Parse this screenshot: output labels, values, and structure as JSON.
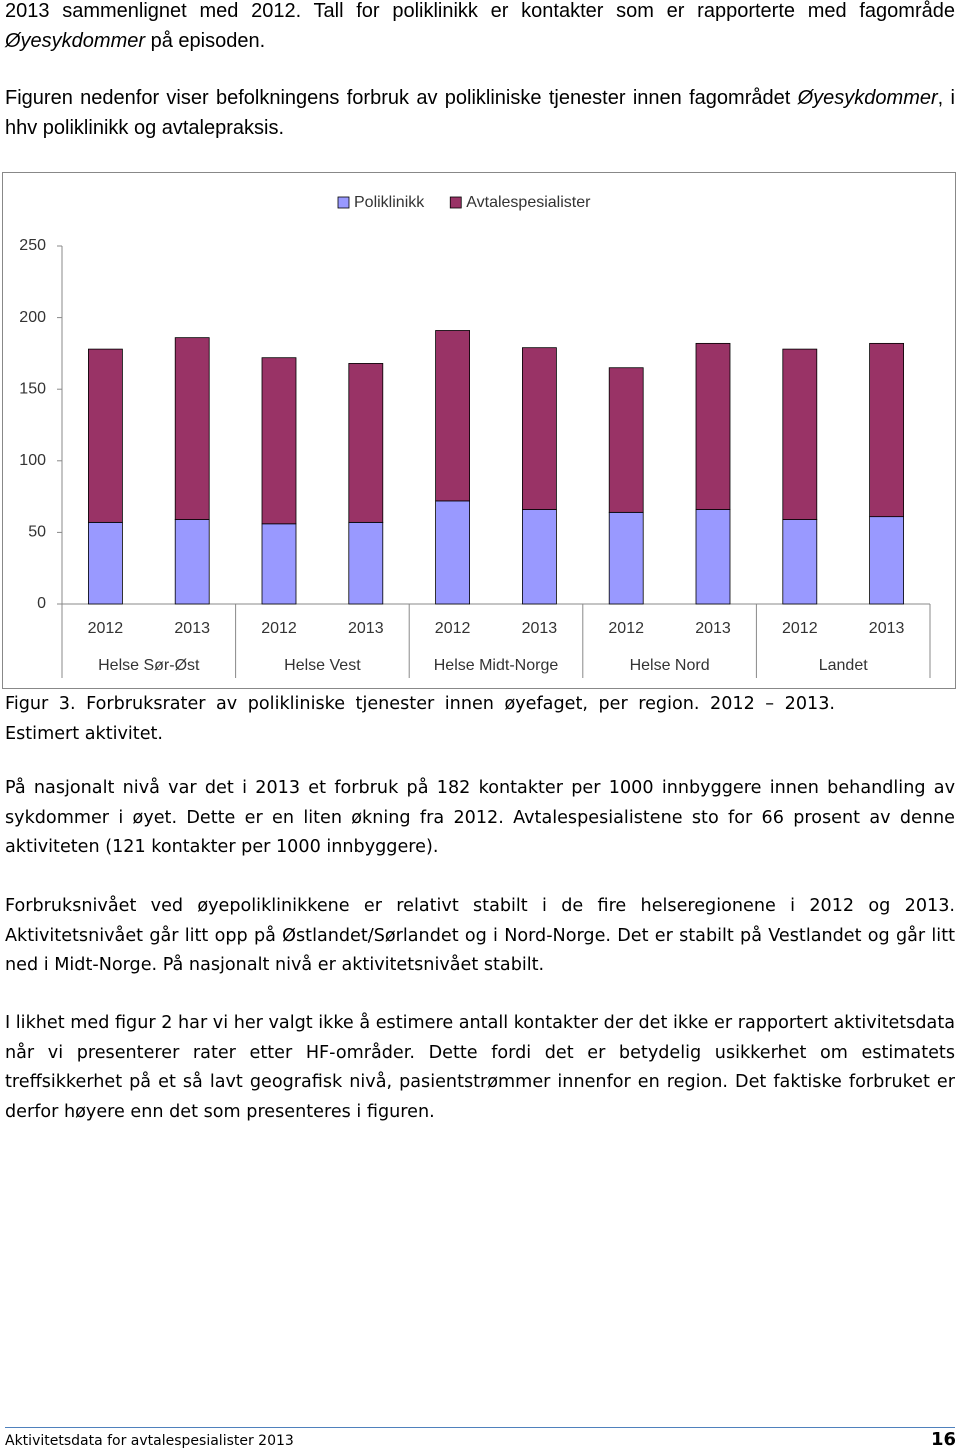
{
  "intro_paragraphs": [
    {
      "parts": [
        {
          "text": "2013 sammenlignet med 2012. Tall for poliklinikk er kontakter som er rapporterte med fagområde "
        },
        {
          "text": "Øyesykdommer",
          "italic": true
        },
        {
          "text": " på episoden."
        }
      ]
    },
    {
      "parts": [
        {
          "text": "Figuren nedenfor viser befolkningens forbruk av polikliniske tjenester innen fagområdet "
        },
        {
          "text": "Øyesykdommer",
          "italic": true
        },
        {
          "text": ", i hhv poliklinikk og avtalepraksis."
        }
      ]
    }
  ],
  "chart_data": {
    "type": "stacked_bar",
    "categories": [
      "2012",
      "2013",
      "2012",
      "2013",
      "2012",
      "2013",
      "2012",
      "2013",
      "2012",
      "2013"
    ],
    "groups": [
      "Helse Sør-Øst",
      "Helse Vest",
      "Helse Midt-Norge",
      "Helse Nord",
      "Landet"
    ],
    "series": [
      {
        "name": "Poliklinikk",
        "color": "#9999ff",
        "values": [
          57,
          59,
          56,
          57,
          72,
          66,
          64,
          66,
          59,
          61
        ]
      },
      {
        "name": "Avtalespesialister",
        "color": "#993366",
        "values": [
          121,
          127,
          116,
          111,
          119,
          113,
          101,
          116,
          119,
          121
        ]
      }
    ],
    "ylim": [
      0,
      250
    ],
    "yticks": [
      0,
      50,
      100,
      150,
      200,
      250
    ],
    "grid": false,
    "legend": "top"
  },
  "caption": "Figur 3. Forbruksrater av polikliniske tjenester innen øyefaget, per region. 2012 – 2013. Estimert aktivitet.",
  "paragraphs": [
    "På nasjonalt nivå var det i 2013 et forbruk på 182 kontakter per 1000 innbyggere innen behandling av sykdommer i øyet. Dette er en liten økning fra 2012. Avtalespesialistene sto for 66 prosent av denne aktiviteten (121 kontakter per 1000 innbyggere).",
    "Forbruksnivået ved øyepoliklinikkene er relativt stabilt i de fire helseregionene i 2012 og 2013. Aktivitetsnivået går litt opp på Østlandet/Sørlandet og i Nord-Norge. Det er stabilt på Vestlandet og går litt ned i Midt-Norge. På nasjonalt nivå er aktivitetsnivået stabilt.",
    "I likhet med figur 2 har vi her valgt ikke å estimere antall kontakter der det ikke er rapportert aktivitetsdata når vi presenterer rater etter HF-områder. Dette fordi det er betydelig usikkerhet om estimatets treffsikkerhet på et så lavt geografisk nivå, pasientstrømmer innenfor en region. Det faktiske forbruket er derfor høyere enn det som presenteres i figuren."
  ],
  "footer": {
    "title": "Aktivitetsdata for avtalespesialister 2013",
    "page": "16"
  }
}
